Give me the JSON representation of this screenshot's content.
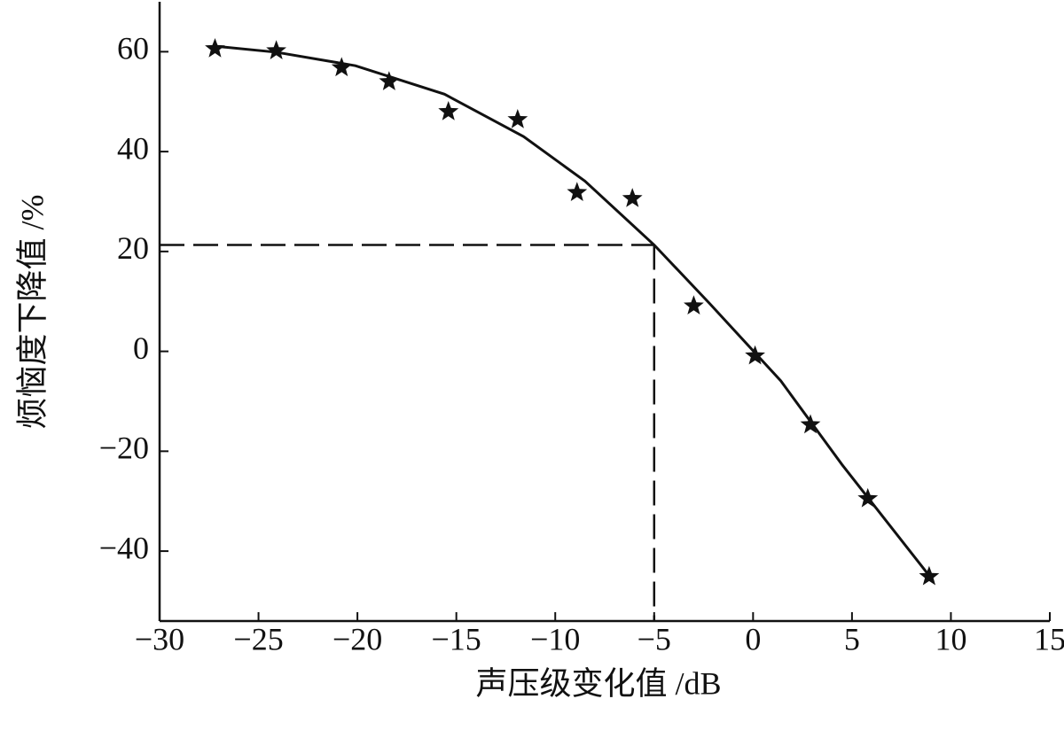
{
  "chart_data": {
    "type": "scatter",
    "x_label": "声压级变化值 /dB",
    "y_label": "烦恼度下降值 /%",
    "xlim": [
      -30,
      15
    ],
    "ylim": [
      -54,
      70
    ],
    "xticks": [
      {
        "value": -30,
        "label": "−30"
      },
      {
        "value": -25,
        "label": "−25"
      },
      {
        "value": -20,
        "label": "−20"
      },
      {
        "value": -15,
        "label": "−15"
      },
      {
        "value": -10,
        "label": "−10"
      },
      {
        "value": -5,
        "label": "−5"
      },
      0,
      5,
      10,
      15
    ],
    "yticks": [
      {
        "value": -40,
        "label": "−40"
      },
      {
        "value": -20,
        "label": "−20"
      },
      0,
      20,
      40,
      60
    ],
    "points": {
      "color": "#111111",
      "x": [
        -27.2,
        -24.1,
        -20.8,
        -18.4,
        -15.4,
        -11.9,
        -8.9,
        -6.1,
        -3.0,
        0.1,
        2.9,
        5.8,
        8.9
      ],
      "y": [
        60.6,
        60.2,
        56.8,
        54.0,
        48.0,
        46.4,
        31.8,
        30.6,
        9.1,
        -0.9,
        -14.7,
        -29.5,
        -45.1
      ]
    },
    "fit_line": {
      "color": "#111111",
      "x": [
        -27.2,
        -24.1,
        -20.1,
        -15.6,
        -11.6,
        -8.5,
        -5.0,
        -2.2,
        1.4,
        4.5,
        8.9
      ],
      "y": [
        61.1,
        59.9,
        57.2,
        51.5,
        43.0,
        34.1,
        21.3,
        9.6,
        -5.9,
        -22.7,
        -44.9
      ]
    },
    "reference": {
      "x": -5,
      "y": 21.3
    }
  }
}
